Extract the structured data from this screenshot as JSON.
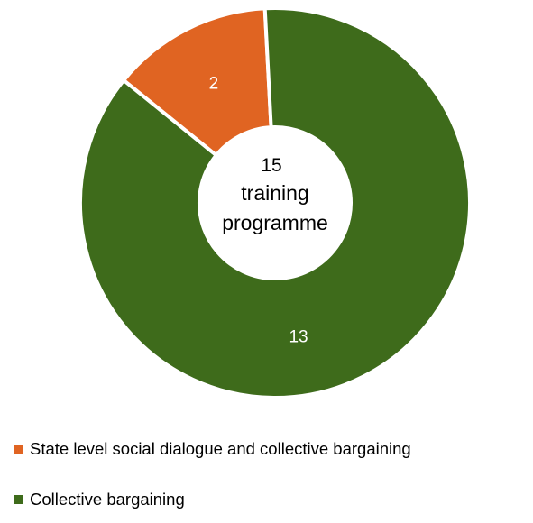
{
  "chart_data": {
    "type": "pie",
    "variant": "donut",
    "center_label": {
      "value": "15",
      "line1": "training",
      "line2": "programme"
    },
    "slices": [
      {
        "name": "State level social dialogue and collective bargaining",
        "value": 2,
        "label": "2",
        "color": "#E06422"
      },
      {
        "name": "Collective bargaining",
        "value": 13,
        "label": "13",
        "color": "#3E6B1B"
      }
    ],
    "legend_position": "bottom"
  }
}
